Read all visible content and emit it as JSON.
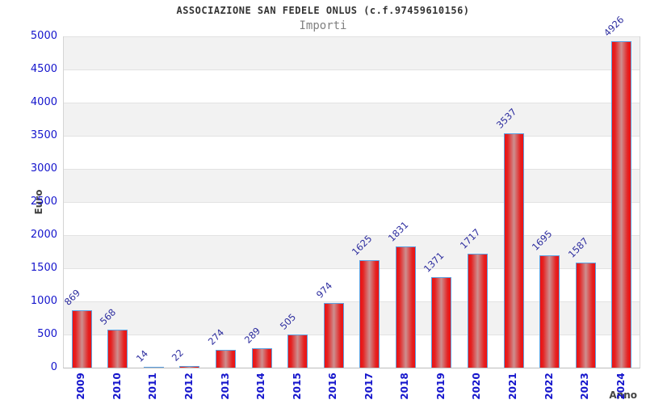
{
  "chart_data": {
    "type": "bar",
    "title": "ASSOCIAZIONE SAN FEDELE ONLUS (c.f.97459610156)",
    "subtitle": "Importi",
    "xlabel": "Anno",
    "ylabel": "Euro",
    "categories": [
      "2009",
      "2010",
      "2011",
      "2012",
      "2013",
      "2014",
      "2015",
      "2016",
      "2017",
      "2018",
      "2019",
      "2020",
      "2021",
      "2022",
      "2023",
      "2024"
    ],
    "values": [
      869,
      568,
      14,
      22,
      274,
      289,
      505,
      974,
      1625,
      1831,
      1371,
      1717,
      3537,
      1695,
      1587,
      4926
    ],
    "ylim": [
      0,
      5000
    ],
    "ytick_step": 500,
    "ytick_labels": [
      "0",
      "500",
      "1000",
      "1500",
      "2000",
      "2500",
      "3000",
      "3500",
      "4000",
      "4500",
      "5000"
    ],
    "grid": "horizontal-alternating-bands",
    "legend": "none",
    "bar_value_labels_rotated_deg": -45,
    "x_tick_labels_rotated_deg": -90,
    "colors": {
      "bar_fill_edge": "#ee1111",
      "bar_fill_mid": "#cd8f8f",
      "bar_border": "#5ca0e0",
      "tick_label": "#1414cc",
      "value_label": "#2d2d9f",
      "axis_title": "#444444",
      "band_gray": "#f2f2f2",
      "band_white": "#ffffff",
      "title": "#333333",
      "subtitle": "#808080"
    }
  }
}
